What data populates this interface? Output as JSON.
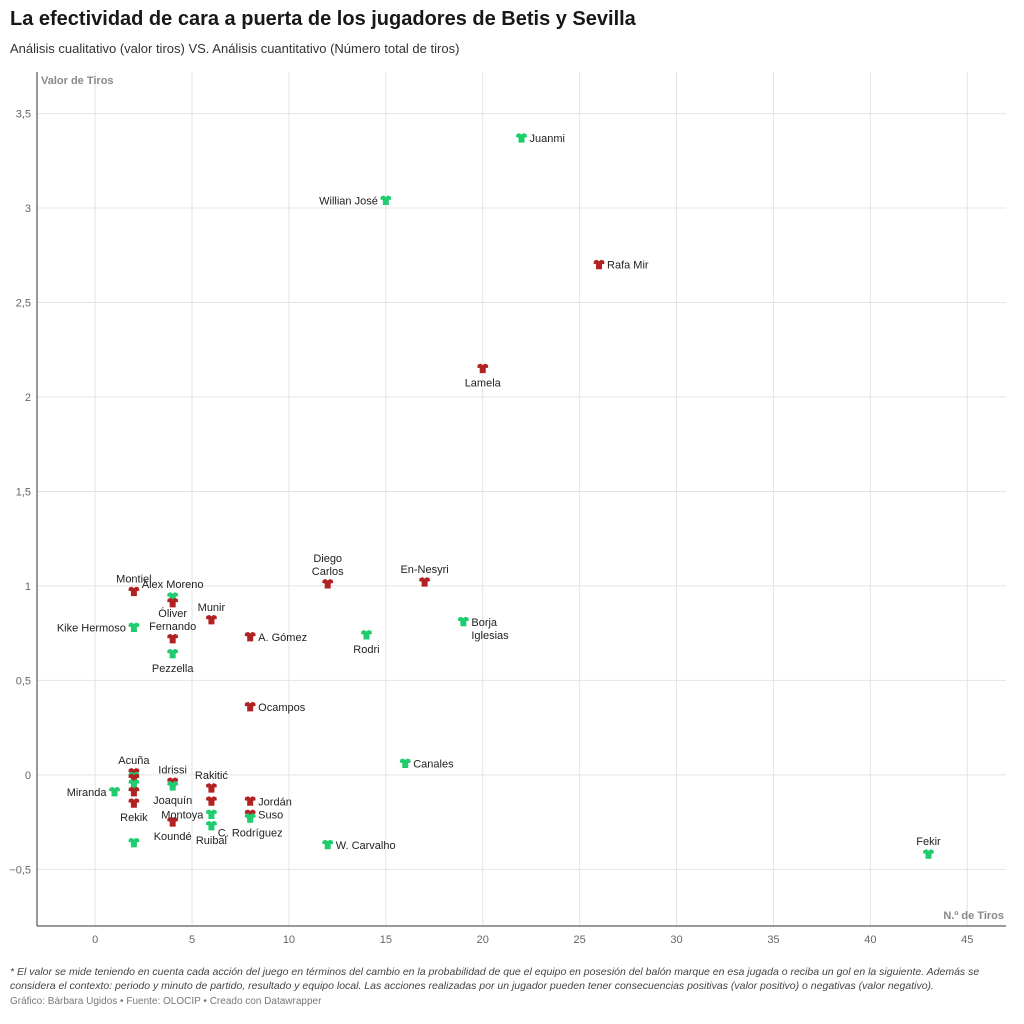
{
  "header": {
    "title": "La efectividad de cara a puerta de los jugadores de Betis y Sevilla",
    "subtitle": "Análisis cualitativo (valor tiros) VS. Análisis cuantitativo (Número total de tiros)"
  },
  "footer": {
    "notes": "* El valor se mide teniendo en cuenta cada acción del juego en términos del cambio en la probabilidad de que el equipo en posesión del balón marque en esa jugada o reciba un gol en la siguiente. Además se considera el contexto: periodo y minuto de partido, resultado y equipo local. Las acciones realizadas por un jugador pueden tener consecuencias positivas (valor positivo) o negativas (valor negativo).",
    "credit_author": "Gráfico: Bárbara Ugidos",
    "credit_source": "Fuente: OLOCIP",
    "credit_tool": "Creado con Datawrapper",
    "separator": " • "
  },
  "chart_data": {
    "type": "scatter",
    "xlabel": "N.º de Tiros",
    "ylabel": "Valor de Tiros",
    "xlim": [
      -3,
      47
    ],
    "ylim": [
      -0.8,
      3.72
    ],
    "xticks": [
      0,
      5,
      10,
      15,
      20,
      25,
      30,
      35,
      40,
      45
    ],
    "xtick_labels": [
      "0",
      "5",
      "10",
      "15",
      "20",
      "25",
      "30",
      "35",
      "40",
      "45"
    ],
    "yticks": [
      -0.5,
      0,
      0.5,
      1,
      1.5,
      2,
      2.5,
      3,
      3.5
    ],
    "ytick_labels": [
      "−0,5",
      "0",
      "0,5",
      "1",
      "1,5",
      "2",
      "2,5",
      "3",
      "3,5"
    ],
    "grid": true,
    "colors": {
      "betis": "#1fcc6e",
      "sevilla": "#b22222",
      "grid": "#e4e4e4",
      "axis": "#333333"
    },
    "points": [
      {
        "label": "Juanmi",
        "team": "betis",
        "x": 22,
        "y": 3.37,
        "pos": "right"
      },
      {
        "label": "Willian José",
        "team": "betis",
        "x": 15,
        "y": 3.04,
        "pos": "left"
      },
      {
        "label": "Rafa Mir",
        "team": "sevilla",
        "x": 26,
        "y": 2.7,
        "pos": "right"
      },
      {
        "label": "Lamela",
        "team": "sevilla",
        "x": 20,
        "y": 2.15,
        "pos": "below"
      },
      {
        "label": [
          "Diego",
          "Carlos"
        ],
        "team": "sevilla",
        "x": 12,
        "y": 1.01,
        "pos": "above"
      },
      {
        "label": "En-Nesyri",
        "team": "sevilla",
        "x": 17,
        "y": 1.02,
        "pos": "above"
      },
      {
        "label": [
          "Borja",
          "Iglesias"
        ],
        "team": "betis",
        "x": 19,
        "y": 0.81,
        "pos": "right-down"
      },
      {
        "label": "Rodri",
        "team": "betis",
        "x": 14,
        "y": 0.74,
        "pos": "below"
      },
      {
        "label": "Montiel",
        "team": "sevilla",
        "x": 2,
        "y": 0.97,
        "pos": "above"
      },
      {
        "label": "Alex Moreno",
        "team": "betis",
        "x": 4,
        "y": 0.94,
        "pos": "above"
      },
      {
        "label": "",
        "team": "sevilla",
        "x": 4,
        "y": 0.91,
        "pos": "none"
      },
      {
        "label": "Munir",
        "team": "sevilla",
        "x": 6,
        "y": 0.82,
        "pos": "above"
      },
      {
        "label": "Kike Hermoso",
        "team": "betis",
        "x": 2,
        "y": 0.78,
        "pos": "left"
      },
      {
        "label": [
          "Óliver",
          "Fernando"
        ],
        "team": "sevilla",
        "x": 4,
        "y": 0.72,
        "pos": "above"
      },
      {
        "label": "A. Gómez",
        "team": "sevilla",
        "x": 8,
        "y": 0.73,
        "pos": "right"
      },
      {
        "label": "Pezzella",
        "team": "betis",
        "x": 4,
        "y": 0.64,
        "pos": "below"
      },
      {
        "label": "Ocampos",
        "team": "sevilla",
        "x": 8,
        "y": 0.36,
        "pos": "right"
      },
      {
        "label": "Canales",
        "team": "betis",
        "x": 16,
        "y": 0.06,
        "pos": "right"
      },
      {
        "label": "Acuña",
        "team": "sevilla",
        "x": 2,
        "y": 0.01,
        "pos": "above"
      },
      {
        "label": "",
        "team": "betis",
        "x": 2,
        "y": -0.01,
        "pos": "none"
      },
      {
        "label": "",
        "team": "sevilla",
        "x": 2,
        "y": -0.02,
        "pos": "none"
      },
      {
        "label": "",
        "team": "betis",
        "x": 2,
        "y": -0.05,
        "pos": "none"
      },
      {
        "label": "",
        "team": "sevilla",
        "x": 2,
        "y": -0.09,
        "pos": "none"
      },
      {
        "label": "Miranda",
        "team": "betis",
        "x": 1,
        "y": -0.09,
        "pos": "left"
      },
      {
        "label": "Rekik",
        "team": "sevilla",
        "x": 2,
        "y": -0.15,
        "pos": "below"
      },
      {
        "label": "Idrissi",
        "team": "sevilla",
        "x": 4,
        "y": -0.04,
        "pos": "above"
      },
      {
        "label": "Joaquín",
        "team": "betis",
        "x": 4,
        "y": -0.06,
        "pos": "below"
      },
      {
        "label": "Rakitić",
        "team": "sevilla",
        "x": 6,
        "y": -0.07,
        "pos": "above"
      },
      {
        "label": "",
        "team": "sevilla",
        "x": 6,
        "y": -0.14,
        "pos": "none"
      },
      {
        "label": "Montoya",
        "team": "betis",
        "x": 6,
        "y": -0.21,
        "pos": "left"
      },
      {
        "label": "Koundé",
        "team": "sevilla",
        "x": 4,
        "y": -0.25,
        "pos": "below"
      },
      {
        "label": "Ruibal",
        "team": "betis",
        "x": 6,
        "y": -0.27,
        "pos": "below"
      },
      {
        "label": "Jordán",
        "team": "sevilla",
        "x": 8,
        "y": -0.14,
        "pos": "right"
      },
      {
        "label": "Suso",
        "team": "sevilla",
        "x": 8,
        "y": -0.21,
        "pos": "right"
      },
      {
        "label": "C. Rodríguez",
        "team": "betis",
        "x": 8,
        "y": -0.23,
        "pos": "below"
      },
      {
        "label": "",
        "team": "betis",
        "x": 2,
        "y": -0.36,
        "pos": "none"
      },
      {
        "label": "W. Carvalho",
        "team": "betis",
        "x": 12,
        "y": -0.37,
        "pos": "right"
      },
      {
        "label": "Fekir",
        "team": "betis",
        "x": 43,
        "y": -0.42,
        "pos": "above"
      }
    ]
  }
}
